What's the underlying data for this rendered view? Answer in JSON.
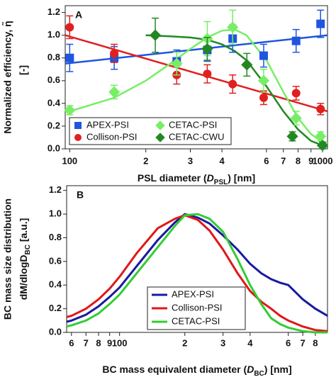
{
  "chart_data": [
    {
      "type": "scatter",
      "title": "A",
      "x_label": [
        "PSL diameter (",
        "D",
        "PSL",
        ") [nm]"
      ],
      "y_label": [
        "Normalized efficiency, η̃",
        "[-]"
      ],
      "xlog": true,
      "xlim": [
        96,
        1046
      ],
      "ylim": [
        0,
        1.26
      ],
      "xticks": [
        100,
        {
          "value": 200,
          "label": "2"
        },
        {
          "value": 300,
          "label": "3"
        },
        {
          "value": 400,
          "label": "4"
        },
        {
          "value": 600,
          "label": "6"
        },
        {
          "value": 700,
          "label": "7"
        },
        {
          "value": 800,
          "label": "8"
        },
        {
          "value": 900,
          "label": "9"
        },
        1000
      ],
      "yticks": [
        {
          "value": 0,
          "label": "0.0"
        },
        0.2,
        0.4,
        0.6,
        0.8,
        {
          "value": 1,
          "label": "1.0"
        },
        1.2
      ],
      "legend": "lower left",
      "series": [
        {
          "name": "APEX-PSI",
          "color": "#1f55e0",
          "marker": "square",
          "x": [
            100,
            150,
            265,
            350,
            441,
            585,
            786,
            982
          ],
          "values": [
            0.8,
            0.8,
            0.77,
            0.87,
            0.97,
            0.82,
            0.95,
            1.1
          ],
          "errors": [
            0.12,
            0.1,
            0.1,
            0.1,
            0.12,
            0.1,
            0.1,
            0.12
          ],
          "fit_x": [
            96,
            1046
          ],
          "fit_values": [
            0.75,
            1.0
          ]
        },
        {
          "name": "Collison-PSI",
          "color": "#e02020",
          "marker": "circle",
          "x": [
            100,
            150,
            265,
            350,
            441,
            585,
            786,
            982
          ],
          "values": [
            1.07,
            0.84,
            0.65,
            0.66,
            0.57,
            0.45,
            0.49,
            0.35
          ],
          "errors": [
            0.1,
            0.08,
            0.08,
            0.08,
            0.08,
            0.06,
            0.06,
            0.05
          ],
          "fit_x": [
            96,
            1046
          ],
          "fit_values": [
            1.0,
            0.33
          ]
        },
        {
          "name": "CETAC-PSI",
          "color": "#77ee66",
          "marker": "diamond",
          "x": [
            100,
            150,
            265,
            350,
            441,
            585,
            786,
            982
          ],
          "values": [
            0.34,
            0.5,
            0.75,
            0.97,
            1.07,
            0.6,
            0.27,
            0.11
          ],
          "errors": [
            0.04,
            0.06,
            0.1,
            0.15,
            0.15,
            0.1,
            0.06,
            0.04
          ],
          "fit_x": [
            100,
            150,
            200,
            250,
            300,
            350,
            400,
            450,
            500,
            600,
            700,
            800,
            900,
            1000,
            1046
          ],
          "fit_values": [
            0.33,
            0.45,
            0.6,
            0.75,
            0.88,
            0.98,
            1.04,
            1.05,
            1.0,
            0.78,
            0.5,
            0.27,
            0.13,
            0.06,
            0.05
          ]
        },
        {
          "name": "CETAC-CWU",
          "color": "#228822",
          "marker": "diamond",
          "x": [
            218,
            350,
            502,
            760,
            1000
          ],
          "values": [
            1.0,
            0.88,
            0.74,
            0.11,
            0.03
          ],
          "errors": [
            0.15,
            0.1,
            0.1,
            0.04,
            0.03
          ],
          "fit_x": [
            200,
            250,
            300,
            350,
            400,
            450,
            500,
            600,
            700,
            800,
            900,
            1000,
            1046
          ],
          "fit_values": [
            1.0,
            0.99,
            0.98,
            0.96,
            0.92,
            0.86,
            0.78,
            0.55,
            0.33,
            0.17,
            0.07,
            0.03,
            0.02
          ]
        }
      ]
    },
    {
      "type": "line",
      "title": "B",
      "x_label": [
        "BC mass equivalent diameter (",
        "D",
        "BC",
        ") [nm]"
      ],
      "y_label": [
        "BC mass size distribution",
        "dM/dlogD",
        "BC",
        " [a.u.]"
      ],
      "xlog": true,
      "xlim": [
        57,
        910
      ],
      "ylim": [
        0,
        1.24
      ],
      "xticks": [
        {
          "value": 60,
          "label": "6"
        },
        {
          "value": 70,
          "label": "7"
        },
        {
          "value": 80,
          "label": "8"
        },
        {
          "value": 90,
          "label": "9"
        },
        100,
        {
          "value": 200,
          "label": "2"
        },
        {
          "value": 300,
          "label": "3"
        },
        {
          "value": 400,
          "label": "4"
        },
        {
          "value": 600,
          "label": "6"
        },
        {
          "value": 700,
          "label": "7"
        },
        {
          "value": 800,
          "label": "8"
        }
      ],
      "yticks": [
        {
          "value": 0,
          "label": "0.0"
        },
        0.2,
        0.4,
        0.6,
        0.8,
        {
          "value": 1,
          "label": "1.0"
        },
        1.2
      ],
      "legend": "lower center",
      "x": [
        57,
        60,
        70,
        80,
        90,
        100,
        120,
        150,
        180,
        200,
        230,
        260,
        300,
        350,
        400,
        450,
        500,
        550,
        600,
        700,
        800,
        910
      ],
      "series": [
        {
          "name": "APEX-PSI",
          "color": "#1a1aa0",
          "values": [
            0.09,
            0.1,
            0.15,
            0.22,
            0.3,
            0.38,
            0.56,
            0.78,
            0.93,
            1.0,
            0.97,
            0.92,
            0.82,
            0.7,
            0.58,
            0.5,
            0.45,
            0.42,
            0.4,
            0.28,
            0.2,
            0.14
          ]
        },
        {
          "name": "Collison-PSI",
          "color": "#e01818",
          "values": [
            0.13,
            0.14,
            0.2,
            0.28,
            0.37,
            0.47,
            0.67,
            0.88,
            0.96,
            0.99,
            0.95,
            0.86,
            0.7,
            0.5,
            0.35,
            0.26,
            0.2,
            0.14,
            0.1,
            0.05,
            0.02,
            0.01
          ]
        },
        {
          "name": "CETAC-PSI",
          "color": "#33cc33",
          "values": [
            0.05,
            0.06,
            0.1,
            0.16,
            0.24,
            0.32,
            0.5,
            0.72,
            0.9,
            0.99,
            1.0,
            0.96,
            0.85,
            0.62,
            0.4,
            0.24,
            0.12,
            0.07,
            0.04,
            0.01,
            0.0,
            0.0
          ]
        }
      ]
    }
  ]
}
